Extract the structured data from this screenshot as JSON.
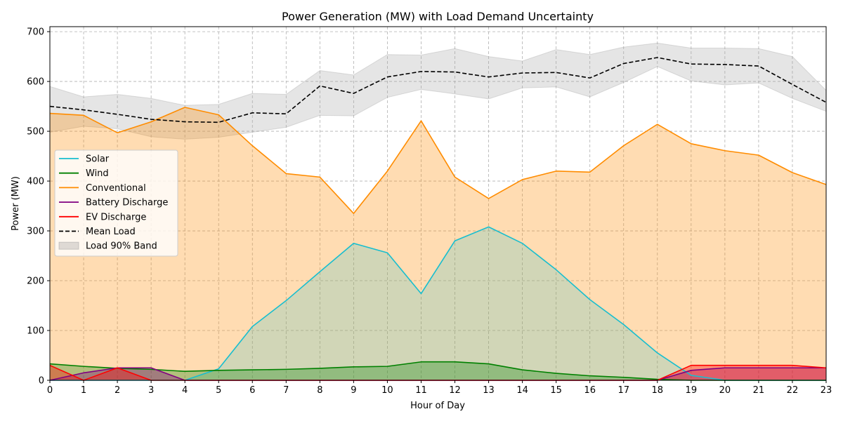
{
  "chart_data": {
    "type": "area",
    "title": "Power Generation (MW) with Load Demand Uncertainty",
    "xlabel": "Hour of Day",
    "ylabel": "Power (MW)",
    "xlim": [
      0,
      23
    ],
    "ylim": [
      0,
      710
    ],
    "x": [
      0,
      1,
      2,
      3,
      4,
      5,
      6,
      7,
      8,
      9,
      10,
      11,
      12,
      13,
      14,
      15,
      16,
      17,
      18,
      19,
      20,
      21,
      22,
      23
    ],
    "yticks": [
      0,
      100,
      200,
      300,
      400,
      500,
      600,
      700
    ],
    "grid": true,
    "legend_placement": "center-left",
    "series": [
      {
        "name": "Solar",
        "color": "#17becf",
        "fill": true,
        "values": [
          0,
          0,
          0,
          0,
          0,
          23,
          108,
          160,
          218,
          275,
          256,
          174,
          280,
          308,
          275,
          222,
          162,
          112,
          55,
          10,
          0,
          0,
          0,
          0
        ]
      },
      {
        "name": "Wind",
        "color": "#008000",
        "fill": true,
        "values": [
          33,
          28,
          24,
          22,
          18,
          20,
          21,
          22,
          24,
          27,
          28,
          37,
          37,
          33,
          21,
          14,
          9,
          6,
          2,
          0,
          0,
          0,
          0,
          0
        ]
      },
      {
        "name": "Conventional",
        "color": "#ff8c00",
        "fill": true,
        "values": [
          536,
          532,
          497,
          519,
          548,
          533,
          471,
          415,
          408,
          335,
          420,
          521,
          408,
          365,
          403,
          420,
          418,
          471,
          514,
          475,
          461,
          452,
          417,
          393
        ]
      },
      {
        "name": "Battery Discharge",
        "color": "#800080",
        "fill": true,
        "values": [
          0,
          15,
          25,
          25,
          0,
          0,
          0,
          0,
          0,
          0,
          0,
          0,
          0,
          0,
          0,
          0,
          0,
          0,
          0,
          20,
          25,
          25,
          25,
          25
        ]
      },
      {
        "name": "EV Discharge",
        "color": "#ff0000",
        "fill": true,
        "values": [
          30,
          0,
          25,
          0,
          0,
          0,
          0,
          0,
          0,
          0,
          0,
          0,
          0,
          0,
          0,
          0,
          0,
          0,
          0,
          30,
          30,
          30,
          30,
          25
        ]
      },
      {
        "name": "Mean Load",
        "color": "#000000",
        "dashed": true,
        "values": [
          550,
          543,
          534,
          524,
          519,
          518,
          537,
          535,
          591,
          576,
          609,
          620,
          619,
          609,
          617,
          618,
          607,
          636,
          648,
          635,
          634,
          631,
          594,
          558
        ]
      }
    ],
    "band": {
      "name": "Load 90% Band",
      "color": "#a0a0a0",
      "lower": [
        498,
        510,
        505,
        489,
        484,
        488,
        498,
        508,
        532,
        531,
        568,
        584,
        575,
        565,
        587,
        589,
        569,
        598,
        630,
        601,
        593,
        597,
        566,
        540
      ],
      "upper": [
        590,
        569,
        574,
        566,
        552,
        554,
        576,
        574,
        622,
        613,
        654,
        653,
        666,
        650,
        641,
        664,
        654,
        669,
        677,
        667,
        667,
        666,
        650,
        582
      ]
    }
  }
}
